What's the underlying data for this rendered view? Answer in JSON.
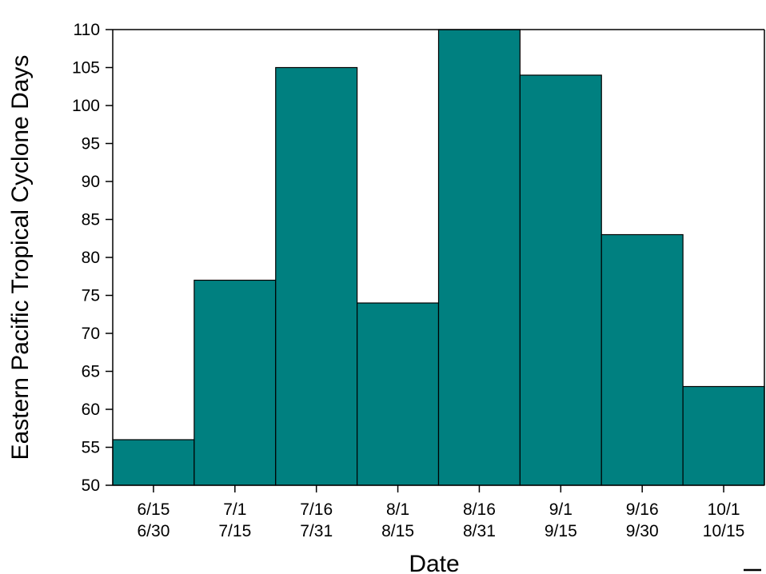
{
  "colors": {
    "bar_fill": "#008080",
    "bar_stroke": "#000000",
    "axis": "#000000",
    "background": "#ffffff"
  },
  "chart_data": {
    "type": "bar",
    "title": "",
    "xlabel": "Date",
    "ylabel": "Eastern Pacific Tropical Cyclone Days",
    "categories": [
      [
        "6/15",
        "6/30"
      ],
      [
        "7/1",
        "7/15"
      ],
      [
        "7/16",
        "7/31"
      ],
      [
        "8/1",
        "8/15"
      ],
      [
        "8/16",
        "8/31"
      ],
      [
        "9/1",
        "9/15"
      ],
      [
        "9/16",
        "9/30"
      ],
      [
        "10/1",
        "10/15"
      ]
    ],
    "values": [
      56,
      77,
      105,
      74,
      110,
      104,
      83,
      63
    ],
    "ylim": [
      50,
      110
    ],
    "yticks": [
      50,
      55,
      60,
      65,
      70,
      75,
      80,
      85,
      90,
      95,
      100,
      105,
      110
    ],
    "grid": false,
    "legend": "none"
  }
}
